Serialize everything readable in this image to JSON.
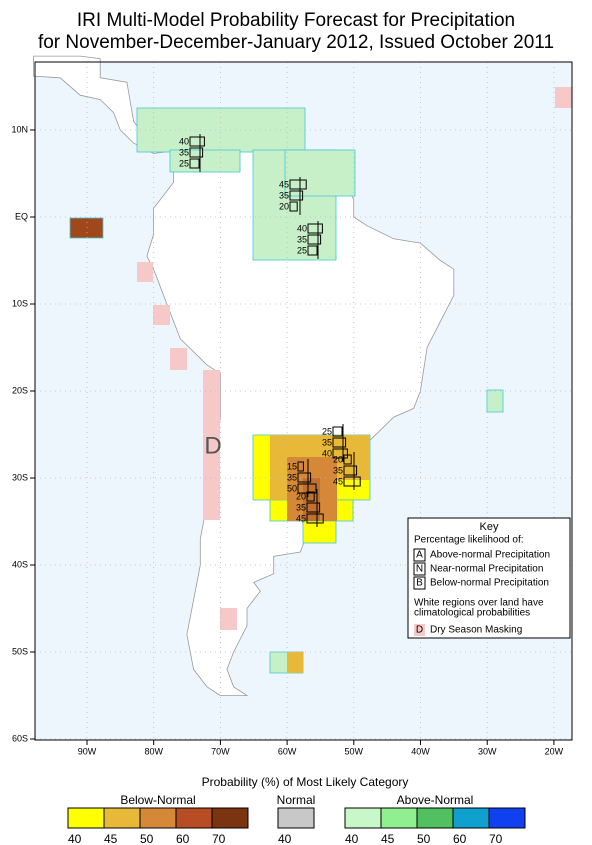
{
  "title": [
    "IRI Multi-Model Probability Forecast for Precipitation",
    "for November-December-January 2012, Issued October 2011"
  ],
  "lat_labels": [
    "10N",
    "EQ",
    "10S",
    "20S",
    "30S",
    "40S",
    "50S",
    "60S"
  ],
  "lon_labels": [
    "90W",
    "80W",
    "70W",
    "60W",
    "50W",
    "40W",
    "30W",
    "20W"
  ],
  "mask_letter": "D",
  "tercile_boxes": [
    [
      40,
      35,
      25
    ],
    [
      45,
      35,
      20
    ],
    [
      40,
      35,
      25
    ],
    [
      25,
      35,
      40
    ],
    [
      20,
      35,
      45
    ],
    [
      15,
      35,
      50
    ],
    [
      20,
      35,
      45
    ]
  ],
  "key": {
    "title": "Key",
    "subtitle": "Percentage likelihood of:",
    "items": [
      {
        "letter": "A",
        "text": "Above-normal Precipitation"
      },
      {
        "letter": "N",
        "text": "Near-normal Precipitation"
      },
      {
        "letter": "B",
        "text": "Below-normal Precipitation"
      }
    ],
    "note": [
      "White regions over land have",
      "climatological probabilities"
    ],
    "mask": {
      "letter": "D",
      "text": "Dry Season Masking"
    }
  },
  "legend": {
    "title": "Probability (%) of Most Likely Category",
    "groups": [
      {
        "name": "Below-Normal",
        "colors": [
          "#ffff00",
          "#e8b838",
          "#d48838",
          "#b84c24",
          "#7a3410"
        ],
        "labels": [
          40,
          45,
          50,
          60,
          70
        ]
      },
      {
        "name": "Normal",
        "colors": [
          "#c8c8c8"
        ],
        "labels": [
          40
        ]
      },
      {
        "name": "Above-Normal",
        "colors": [
          "#c8f8c8",
          "#90f090",
          "#50c060",
          "#10a0d0",
          "#1040f0"
        ],
        "labels": [
          40,
          45,
          50,
          60,
          70
        ]
      }
    ]
  }
}
